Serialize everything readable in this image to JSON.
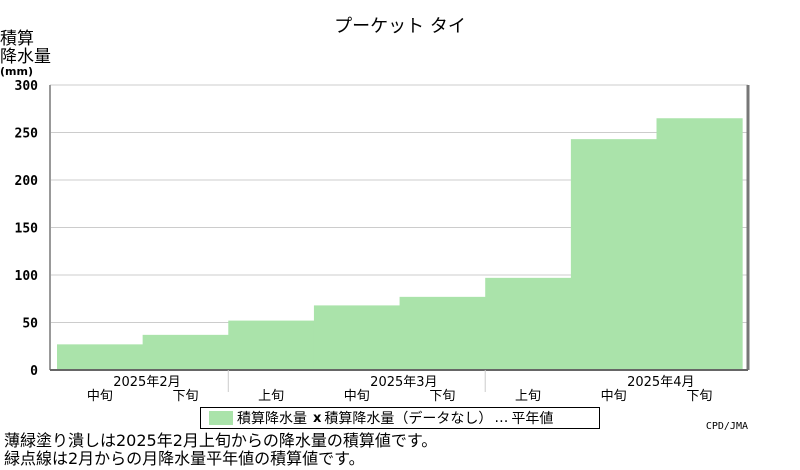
{
  "title": "プーケット タイ",
  "ylabel_line1": "積算",
  "ylabel_line2": "降水量",
  "ylabel_unit": "(mm)",
  "legend": {
    "series_label": "積算降水量",
    "nodata_label": "積算降水量（データなし）",
    "normal_label": "平年値"
  },
  "credit": "CPD/JMA",
  "notes": [
    "薄緑塗り潰しは2025年2月上旬からの降水量の積算値です。",
    "緑点線は2月からの月降水量平年値の積算値です。"
  ],
  "colors": {
    "bar": "#aae3aa",
    "grid": "#cccccc"
  },
  "chart_data": {
    "type": "area",
    "y_ticks": [
      0,
      50,
      100,
      150,
      200,
      250,
      300
    ],
    "ylim": [
      0,
      300
    ],
    "grid": true,
    "months": [
      "2025年2月",
      "2025年3月",
      "2025年4月"
    ],
    "periods": [
      "中旬",
      "下旬",
      "上旬",
      "中旬",
      "下旬",
      "上旬",
      "中旬",
      "下旬"
    ],
    "values": [
      27,
      37,
      52,
      68,
      77,
      97,
      243,
      265
    ]
  }
}
